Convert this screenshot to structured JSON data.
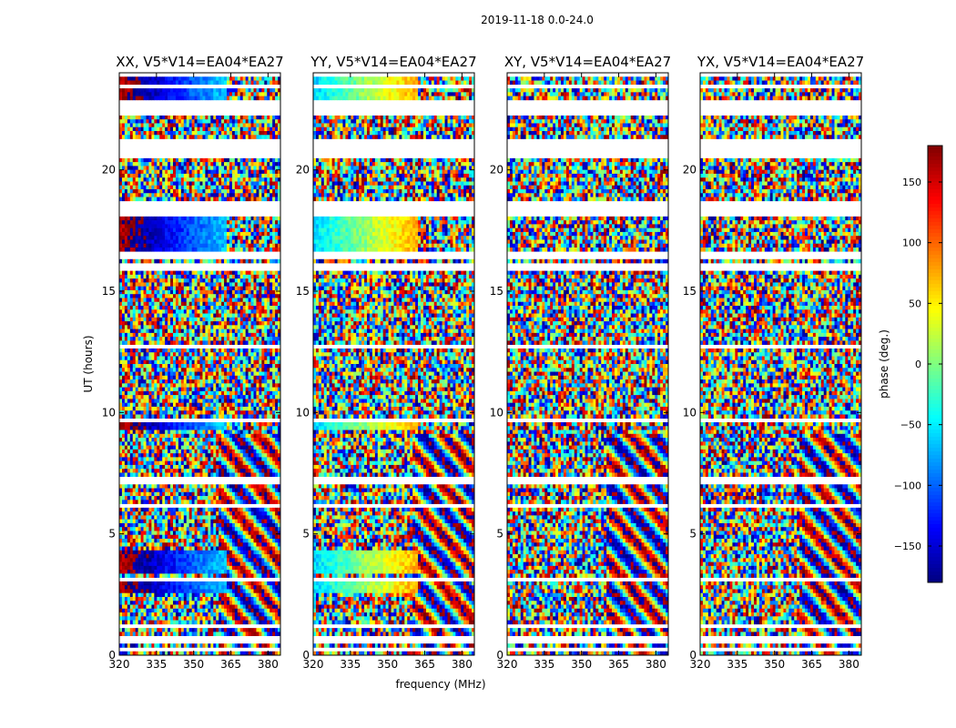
{
  "chart_data": {
    "type": "heatmap",
    "title": "2019-11-18 0.0-24.0",
    "xlabel": "frequency (MHz)",
    "ylabel": "UT (hours)",
    "xlim": [
      320,
      385
    ],
    "ylim": [
      0,
      24
    ],
    "x_ticks": [
      320,
      335,
      350,
      365,
      380
    ],
    "y_ticks": [
      0,
      5,
      10,
      15,
      20
    ],
    "colorbar": {
      "label": "phase (deg.)",
      "range": [
        -180,
        180
      ],
      "ticks": [
        150,
        100,
        50,
        0,
        -50,
        -100,
        -150
      ],
      "colormap": "jet"
    },
    "panels": [
      {
        "title": "XX, V5*V14=EA04*EA27",
        "phase_offset": 160,
        "coherent_to_mhz": 363
      },
      {
        "title": "YY, V5*V14=EA04*EA27",
        "phase_offset": -60,
        "coherent_to_mhz": 362
      },
      {
        "title": "XY, V5*V14=EA04*EA27",
        "phase_offset": 0,
        "coherent_to_mhz": 0
      },
      {
        "title": "YX, V5*V14=EA04*EA27",
        "phase_offset": 0,
        "coherent_to_mhz": 0
      }
    ],
    "blank_time_ranges_hours": [
      [
        0.12,
        0.38
      ],
      [
        0.55,
        0.75
      ],
      [
        1.15,
        1.35
      ],
      [
        2.35,
        2.45
      ],
      [
        3.05,
        3.2
      ],
      [
        4.4,
        4.55
      ],
      [
        6.15,
        6.3
      ],
      [
        7.05,
        7.4
      ],
      [
        9.55,
        9.7
      ],
      [
        12.7,
        12.85
      ],
      [
        15.85,
        16.2
      ],
      [
        16.4,
        16.65
      ],
      [
        18.05,
        18.7
      ],
      [
        20.55,
        21.25
      ],
      [
        22.2,
        22.95
      ],
      [
        23.3,
        23.45
      ],
      [
        23.85,
        24.0
      ]
    ],
    "coherent_time_ranges_hours": [
      [
        2.6,
        3.0
      ],
      [
        3.35,
        4.3
      ],
      [
        9.3,
        9.7
      ],
      [
        16.7,
        18.0
      ],
      [
        22.95,
        24.0
      ]
    ]
  }
}
